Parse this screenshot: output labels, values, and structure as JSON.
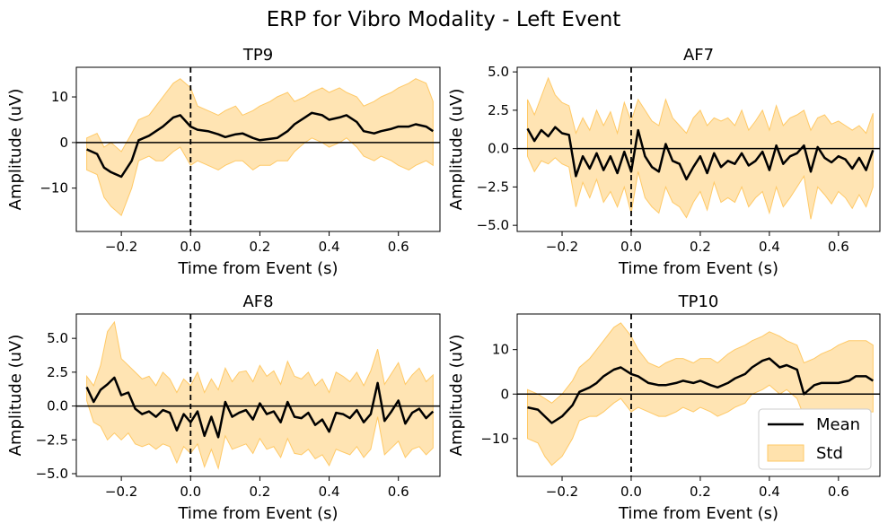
{
  "figure": {
    "title": "ERP for Vibro Modality - Left Event",
    "band_color": "#FFD68A",
    "band_edge_color": "#FFC966",
    "line_color": "#000000"
  },
  "legend": {
    "mean_label": "Mean",
    "std_label": "Std",
    "location": "lower right of TP10 panel"
  },
  "chart_data": [
    {
      "type": "line",
      "title": "TP9",
      "xlabel": "Time from Event (s)",
      "ylabel": "Amplitude (uV)",
      "xlim": [
        -0.33,
        0.72
      ],
      "ylim": [
        -19.5,
        16.5
      ],
      "xticks": [
        -0.2,
        0.0,
        0.2,
        0.4,
        0.6
      ],
      "xtick_labels": [
        "−0.2",
        "0.0",
        "0.2",
        "0.4",
        "0.6"
      ],
      "yticks": [
        -10,
        0,
        10
      ],
      "ytick_labels": [
        "−10",
        "0",
        "10"
      ],
      "event_marker_x": 0.0,
      "zero_line_y": 0.0,
      "x": [
        -0.3,
        -0.27,
        -0.25,
        -0.23,
        -0.2,
        -0.17,
        -0.15,
        -0.12,
        -0.1,
        -0.08,
        -0.05,
        -0.03,
        0.0,
        0.02,
        0.05,
        0.08,
        0.1,
        0.13,
        0.15,
        0.18,
        0.2,
        0.23,
        0.25,
        0.28,
        0.3,
        0.33,
        0.35,
        0.38,
        0.4,
        0.43,
        0.45,
        0.48,
        0.5,
        0.53,
        0.55,
        0.58,
        0.6,
        0.63,
        0.65,
        0.68,
        0.7
      ],
      "mean": [
        -1.5,
        -2.5,
        -5.5,
        -6.5,
        -7.5,
        -4.0,
        0.5,
        1.5,
        2.5,
        3.5,
        5.5,
        6.0,
        3.5,
        2.8,
        2.5,
        1.8,
        1.2,
        1.8,
        2.0,
        1.0,
        0.5,
        0.8,
        1.0,
        2.5,
        4.0,
        5.5,
        6.5,
        6.0,
        5.0,
        5.5,
        6.0,
        4.5,
        2.5,
        2.0,
        2.5,
        3.0,
        3.5,
        3.5,
        4.0,
        3.5,
        2.5
      ],
      "upper": [
        1,
        2,
        -1,
        0,
        -2,
        2,
        5,
        6,
        8,
        10,
        13,
        14,
        12,
        8,
        7,
        6,
        7,
        8,
        6,
        7,
        8,
        9,
        10,
        11,
        9,
        10,
        11,
        12,
        11,
        12,
        11,
        10,
        8,
        9,
        10,
        11,
        12,
        13,
        14,
        13,
        9
      ],
      "lower": [
        -6,
        -7,
        -12,
        -14,
        -16,
        -10,
        -4,
        -3,
        -4,
        -4,
        -2,
        -1,
        -5,
        -4,
        -5,
        -6,
        -5,
        -4,
        -4,
        -6,
        -5,
        -5,
        -4,
        -4,
        -2,
        0,
        1,
        0,
        -1,
        0,
        1,
        -1,
        -3,
        -4,
        -3,
        -4,
        -5,
        -6,
        -5,
        -4,
        -5
      ]
    },
    {
      "type": "line",
      "title": "AF7",
      "xlabel": "Time from Event (s)",
      "ylabel": "Amplitude (uV)",
      "xlim": [
        -0.33,
        0.72
      ],
      "ylim": [
        -5.4,
        5.3
      ],
      "xticks": [
        -0.2,
        0.0,
        0.2,
        0.4,
        0.6
      ],
      "xtick_labels": [
        "−0.2",
        "0.0",
        "0.2",
        "0.4",
        "0.6"
      ],
      "yticks": [
        -5.0,
        -2.5,
        0.0,
        2.5,
        5.0
      ],
      "ytick_labels": [
        "−5.0",
        "−2.5",
        "0.0",
        "2.5",
        "5.0"
      ],
      "event_marker_x": 0.0,
      "zero_line_y": 0.0,
      "x": [
        -0.3,
        -0.28,
        -0.26,
        -0.24,
        -0.22,
        -0.2,
        -0.18,
        -0.16,
        -0.14,
        -0.12,
        -0.1,
        -0.08,
        -0.06,
        -0.04,
        -0.02,
        0.0,
        0.02,
        0.04,
        0.06,
        0.08,
        0.1,
        0.12,
        0.14,
        0.16,
        0.18,
        0.2,
        0.22,
        0.24,
        0.26,
        0.28,
        0.3,
        0.32,
        0.34,
        0.36,
        0.38,
        0.4,
        0.42,
        0.44,
        0.46,
        0.48,
        0.5,
        0.52,
        0.54,
        0.56,
        0.58,
        0.6,
        0.62,
        0.64,
        0.66,
        0.68,
        0.7
      ],
      "mean": [
        1.3,
        0.5,
        1.2,
        0.8,
        1.4,
        1.0,
        0.9,
        -1.8,
        -0.5,
        -1.3,
        -0.3,
        -1.4,
        -0.5,
        -1.6,
        -0.2,
        -1.5,
        1.2,
        -0.5,
        -1.2,
        -1.5,
        0.3,
        -0.8,
        -1.0,
        -2.0,
        -1.2,
        -0.5,
        -1.6,
        -0.3,
        -1.2,
        -0.8,
        -1.0,
        -0.3,
        -1.1,
        -0.8,
        -0.2,
        -1.4,
        0.2,
        -1.0,
        -0.5,
        -0.3,
        0.2,
        -1.5,
        0.1,
        -0.6,
        -0.9,
        -0.5,
        -0.7,
        -1.3,
        -0.6,
        -1.4,
        -0.1
      ],
      "upper": [
        3.2,
        2.2,
        3.4,
        4.6,
        3.5,
        3.0,
        2.8,
        1.0,
        2.0,
        1.2,
        2.5,
        1.5,
        2.4,
        1.0,
        3.0,
        1.8,
        3.2,
        2.5,
        1.8,
        1.5,
        3.2,
        2.0,
        1.5,
        1.0,
        2.0,
        2.5,
        1.5,
        2.0,
        1.8,
        2.0,
        1.5,
        2.5,
        1.2,
        1.8,
        2.5,
        1.2,
        2.8,
        1.5,
        2.0,
        2.2,
        2.5,
        1.2,
        2.0,
        2.2,
        1.6,
        1.8,
        1.5,
        1.2,
        1.5,
        1.0,
        2.3
      ],
      "lower": [
        -0.5,
        -1.5,
        -0.8,
        -1.0,
        -0.6,
        -1.0,
        -1.2,
        -3.8,
        -2.2,
        -3.2,
        -2.0,
        -3.5,
        -2.8,
        -3.8,
        -2.5,
        -4.2,
        -1.5,
        -3.2,
        -3.8,
        -4.2,
        -2.5,
        -3.5,
        -3.8,
        -4.5,
        -3.5,
        -2.8,
        -4.0,
        -2.2,
        -3.5,
        -3.2,
        -3.5,
        -2.5,
        -3.8,
        -3.2,
        -2.8,
        -4.2,
        -2.5,
        -3.8,
        -3.2,
        -2.5,
        -1.8,
        -4.6,
        -2.5,
        -3.0,
        -3.6,
        -2.8,
        -3.2,
        -3.9,
        -3.0,
        -3.8,
        -2.5
      ]
    },
    {
      "type": "line",
      "title": "AF8",
      "xlabel": "Time from Event (s)",
      "ylabel": "Amplitude (uV)",
      "xlim": [
        -0.33,
        0.72
      ],
      "ylim": [
        -5.2,
        6.8
      ],
      "xticks": [
        -0.2,
        0.0,
        0.2,
        0.4,
        0.6
      ],
      "xtick_labels": [
        "−0.2",
        "0.0",
        "0.2",
        "0.4",
        "0.6"
      ],
      "yticks": [
        -5.0,
        -2.5,
        0.0,
        2.5,
        5.0
      ],
      "ytick_labels": [
        "−5.0",
        "−2.5",
        "0.0",
        "2.5",
        "5.0"
      ],
      "event_marker_x": 0.0,
      "zero_line_y": 0.0,
      "x": [
        -0.3,
        -0.28,
        -0.26,
        -0.24,
        -0.22,
        -0.2,
        -0.18,
        -0.16,
        -0.14,
        -0.12,
        -0.1,
        -0.08,
        -0.06,
        -0.04,
        -0.02,
        0.0,
        0.02,
        0.04,
        0.06,
        0.08,
        0.1,
        0.12,
        0.14,
        0.16,
        0.18,
        0.2,
        0.22,
        0.24,
        0.26,
        0.28,
        0.3,
        0.32,
        0.34,
        0.36,
        0.38,
        0.4,
        0.42,
        0.44,
        0.46,
        0.48,
        0.5,
        0.52,
        0.54,
        0.56,
        0.58,
        0.6,
        0.62,
        0.64,
        0.66,
        0.68,
        0.7
      ],
      "mean": [
        1.4,
        0.3,
        1.2,
        1.6,
        2.1,
        0.8,
        1.0,
        -0.2,
        -0.6,
        -0.4,
        -0.8,
        -0.3,
        -0.5,
        -1.8,
        -0.6,
        -1.2,
        -0.4,
        -2.2,
        -0.8,
        -2.3,
        0.3,
        -0.8,
        -0.5,
        -0.3,
        -1.0,
        0.2,
        -0.6,
        -0.4,
        -1.2,
        0.3,
        -0.8,
        -0.9,
        -0.5,
        -1.4,
        -1.0,
        -1.9,
        -0.5,
        -0.6,
        -0.9,
        -0.3,
        -1.2,
        -0.6,
        1.7,
        -1.1,
        -0.4,
        0.4,
        -1.3,
        -0.5,
        -0.2,
        -0.9,
        -0.4
      ],
      "upper": [
        2.2,
        1.5,
        3.0,
        5.5,
        6.2,
        3.5,
        3.0,
        2.5,
        2.0,
        2.2,
        1.5,
        2.5,
        2.0,
        1.0,
        2.0,
        1.5,
        2.5,
        1.0,
        2.0,
        1.2,
        2.8,
        1.8,
        2.5,
        2.6,
        1.8,
        3.0,
        2.2,
        2.6,
        1.6,
        3.3,
        2.2,
        2.0,
        2.5,
        1.5,
        2.0,
        1.0,
        2.5,
        2.2,
        1.8,
        2.5,
        1.5,
        2.6,
        4.2,
        1.6,
        2.4,
        3.2,
        1.6,
        2.3,
        2.8,
        1.8,
        2.3
      ],
      "lower": [
        0.4,
        -1.2,
        -1.5,
        -2.5,
        -2.0,
        -2.5,
        -2.0,
        -2.8,
        -3.0,
        -2.8,
        -3.2,
        -2.8,
        -3.0,
        -4.2,
        -3.0,
        -3.5,
        -2.8,
        -4.5,
        -3.2,
        -4.6,
        -2.2,
        -3.2,
        -3.0,
        -2.8,
        -3.5,
        -2.4,
        -3.2,
        -3.0,
        -3.8,
        -2.4,
        -3.5,
        -3.6,
        -3.2,
        -3.9,
        -3.6,
        -4.4,
        -3.2,
        -3.4,
        -3.6,
        -3.0,
        -3.8,
        -3.2,
        -0.8,
        -3.6,
        -3.1,
        -2.6,
        -3.8,
        -3.2,
        -3.0,
        -3.6,
        -3.1
      ]
    },
    {
      "type": "line",
      "title": "TP10",
      "xlabel": "Time from Event (s)",
      "ylabel": "Amplitude (uV)",
      "xlim": [
        -0.33,
        0.72
      ],
      "ylim": [
        -18.5,
        18.0
      ],
      "xticks": [
        -0.2,
        0.0,
        0.2,
        0.4,
        0.6
      ],
      "xtick_labels": [
        "−0.2",
        "0.0",
        "0.2",
        "0.4",
        "0.6"
      ],
      "yticks": [
        -10,
        0,
        10
      ],
      "ytick_labels": [
        "−10",
        "0",
        "10"
      ],
      "event_marker_x": 0.0,
      "zero_line_y": 0.0,
      "x": [
        -0.3,
        -0.27,
        -0.25,
        -0.23,
        -0.2,
        -0.17,
        -0.15,
        -0.12,
        -0.1,
        -0.08,
        -0.05,
        -0.03,
        0.0,
        0.02,
        0.05,
        0.08,
        0.1,
        0.13,
        0.15,
        0.18,
        0.2,
        0.23,
        0.25,
        0.28,
        0.3,
        0.33,
        0.35,
        0.38,
        0.4,
        0.43,
        0.45,
        0.48,
        0.5,
        0.53,
        0.55,
        0.58,
        0.6,
        0.63,
        0.65,
        0.68,
        0.7
      ],
      "mean": [
        -3.0,
        -3.5,
        -5.0,
        -6.5,
        -5.0,
        -2.5,
        0.5,
        1.5,
        2.5,
        4.0,
        5.5,
        6.0,
        4.5,
        4.0,
        2.5,
        2.0,
        2.0,
        2.5,
        3.0,
        2.5,
        3.0,
        2.0,
        1.5,
        2.5,
        3.5,
        4.5,
        6.0,
        7.5,
        8.0,
        6.0,
        6.5,
        5.5,
        0.0,
        2.0,
        2.5,
        2.5,
        2.5,
        3.0,
        4.0,
        4.0,
        3.0
      ],
      "upper": [
        1,
        0,
        -1,
        -2,
        0,
        3,
        6,
        8,
        10,
        12,
        15,
        16,
        13,
        10,
        7,
        6,
        7,
        8,
        8,
        7,
        8,
        8,
        7,
        9,
        10,
        11,
        12,
        13,
        14,
        13,
        12,
        11,
        7,
        8,
        9,
        10,
        11,
        12,
        12,
        12,
        11
      ],
      "lower": [
        -10,
        -11,
        -14,
        -16,
        -14,
        -10,
        -6,
        -5,
        -5,
        -4,
        -2,
        -1,
        -4,
        -3,
        -4,
        -5,
        -5,
        -4,
        -3,
        -4,
        -3,
        -4,
        -5,
        -4,
        -3,
        -2,
        0,
        1,
        2,
        0,
        1,
        -1,
        -5,
        -5,
        -6,
        -6,
        -5,
        -5,
        -4,
        -4,
        -4
      ]
    }
  ]
}
